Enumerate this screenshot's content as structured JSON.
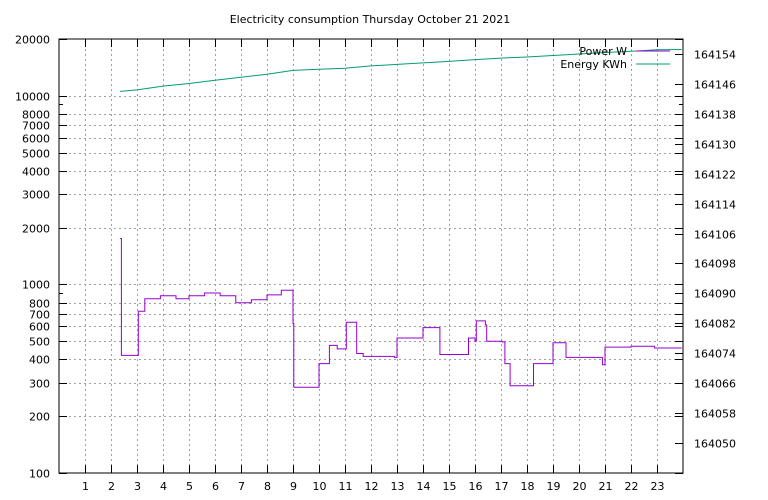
{
  "chart_data": {
    "type": "line",
    "title": "Electricity consumption Thursday October 21 2021",
    "xlabel": "",
    "ylabel": "",
    "y2label": "",
    "xlim": [
      0,
      24
    ],
    "ylim": [
      100,
      20000
    ],
    "y_scale": "log",
    "y2lim": [
      164042,
      164158
    ],
    "x_ticks": [
      "1",
      "2",
      "3",
      "4",
      "5",
      "6",
      "7",
      "8",
      "9",
      "10",
      "11",
      "12",
      "13",
      "14",
      "15",
      "16",
      "17",
      "18",
      "19",
      "20",
      "21",
      "22",
      "23"
    ],
    "y_ticks": [
      "100",
      "200",
      "300",
      "400",
      "500",
      "600",
      "700",
      "800",
      "1000",
      "2000",
      "3000",
      "4000",
      "5000",
      "6000",
      "7000",
      "8000",
      "10000",
      "20000"
    ],
    "y2_ticks": [
      "164050",
      "164058",
      "164066",
      "164074",
      "164082",
      "164090",
      "164098",
      "164106",
      "164114",
      "164122",
      "164130",
      "164138",
      "164146",
      "164154"
    ],
    "grid": true,
    "legend": "top-right",
    "colors": {
      "power": "#9400d3",
      "energy": "#009e73"
    },
    "series": [
      {
        "name": "Power W",
        "axis": "left",
        "step": true,
        "x": [
          2.35,
          2.4,
          3.0,
          3.05,
          3.3,
          3.9,
          4.5,
          5.0,
          5.6,
          6.2,
          6.8,
          7.4,
          8.0,
          8.55,
          9.0,
          9.03,
          10.0,
          10.4,
          10.7,
          11.05,
          11.45,
          11.7,
          12.9,
          13.0,
          14.0,
          14.65,
          15.0,
          15.75,
          16.0,
          16.05,
          16.4,
          16.45,
          17.05,
          17.15,
          17.35,
          18.15,
          18.25,
          18.85,
          19.0,
          19.5,
          20.8,
          20.9,
          21.0,
          21.85,
          22.0,
          22.9,
          23.95
        ],
        "y": [
          1750,
          420,
          420,
          720,
          840,
          870,
          840,
          870,
          900,
          870,
          800,
          830,
          880,
          930,
          620,
          285,
          380,
          475,
          455,
          630,
          430,
          415,
          410,
          520,
          590,
          425,
          425,
          520,
          500,
          640,
          610,
          500,
          495,
          380,
          290,
          290,
          380,
          380,
          490,
          410,
          410,
          375,
          465,
          465,
          470,
          460,
          460
        ]
      },
      {
        "name": "Energy KWh",
        "axis": "right",
        "step": false,
        "x": [
          2.35,
          3.0,
          4.0,
          5.0,
          6.0,
          7.0,
          8.0,
          9.0,
          10.0,
          11.0,
          12.0,
          13.0,
          14.0,
          15.0,
          16.0,
          17.0,
          18.0,
          19.0,
          20.0,
          21.0,
          22.0,
          23.0,
          23.95
        ],
        "y": [
          164144,
          164144.4,
          164145.4,
          164146.1,
          164147.0,
          164147.8,
          164148.6,
          164149.6,
          164149.9,
          164150.2,
          164150.8,
          164151.2,
          164151.6,
          164152.0,
          164152.5,
          164152.9,
          164153.2,
          164153.6,
          164154.0,
          164154.4,
          164154.7,
          164155.1,
          164155.2
        ]
      }
    ]
  }
}
